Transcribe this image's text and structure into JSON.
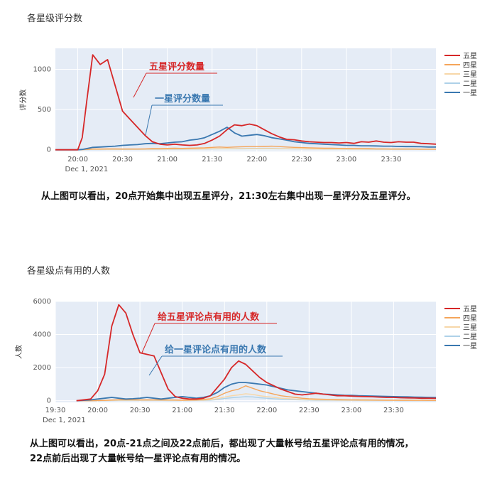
{
  "texts": {
    "chart1_title": "各星级评分数",
    "chart2_title": "各星级点有用的人数",
    "caption1": "从上图可以看出，20点开始集中出现五星评分，21:30左右集中出现一星评分及五星评分。",
    "caption2_line1": "从上图可以看出，20点-21点之间及22点前后，都出现了大量帐号给五星评论点有用的情况，",
    "caption2_line2": "22点前后出现了大量帐号给一星评论点有用的情况。"
  },
  "colors": {
    "五星": "#d62728",
    "四星": "#f5a55a",
    "三星": "#f7d7a8",
    "二星": "#aed1e8",
    "一星": "#3a78b0",
    "plot_bg": "#e5ecf6"
  },
  "chart_data": [
    {
      "type": "line",
      "title": "各星级评分数",
      "ylabel": "评分数",
      "xlabel": "",
      "x_ticks": [
        "20:00",
        "20:30",
        "21:00",
        "21:30",
        "22:00",
        "22:30",
        "23:00",
        "23:30"
      ],
      "x_sublabel": "Dec 1, 2021",
      "y_ticks": [
        0,
        500,
        1000
      ],
      "xlim": [
        19.75,
        24.0
      ],
      "ylim": [
        -20,
        1260
      ],
      "legend_position": "right",
      "annotations": [
        {
          "text": "五星评分数量",
          "series": "五星"
        },
        {
          "text": "一星评分数量",
          "series": "一星"
        }
      ],
      "x": [
        19.75,
        19.917,
        20.0,
        20.05,
        20.1,
        20.167,
        20.25,
        20.333,
        20.417,
        20.5,
        20.583,
        20.667,
        20.75,
        20.833,
        20.917,
        21.0,
        21.083,
        21.167,
        21.25,
        21.333,
        21.417,
        21.5,
        21.583,
        21.667,
        21.75,
        21.833,
        21.917,
        22.0,
        22.083,
        22.167,
        22.25,
        22.333,
        22.417,
        22.5,
        22.583,
        22.667,
        22.75,
        22.833,
        22.917,
        23.0,
        23.083,
        23.167,
        23.25,
        23.333,
        23.417,
        23.5,
        23.583,
        23.667,
        23.75,
        23.833,
        23.917,
        24.0
      ],
      "series": [
        {
          "name": "五星",
          "values": [
            0,
            0,
            0,
            150,
            600,
            1180,
            1060,
            1120,
            800,
            480,
            380,
            280,
            180,
            100,
            70,
            60,
            70,
            60,
            55,
            60,
            80,
            120,
            170,
            250,
            310,
            300,
            320,
            300,
            250,
            200,
            160,
            130,
            125,
            110,
            100,
            95,
            90,
            90,
            85,
            90,
            80,
            100,
            95,
            110,
            95,
            90,
            100,
            95,
            95,
            80,
            75,
            70
          ]
        },
        {
          "name": "四星",
          "values": [
            0,
            0,
            0,
            2,
            5,
            10,
            10,
            12,
            12,
            10,
            10,
            10,
            12,
            15,
            15,
            18,
            20,
            18,
            20,
            22,
            25,
            30,
            35,
            30,
            35,
            38,
            40,
            40,
            42,
            45,
            40,
            35,
            30,
            28,
            25,
            22,
            20,
            20,
            18,
            18,
            15,
            15,
            15,
            12,
            12,
            10,
            10,
            10,
            10,
            8,
            8,
            8
          ]
        },
        {
          "name": "三星",
          "values": [
            0,
            0,
            0,
            1,
            3,
            5,
            5,
            6,
            6,
            6,
            6,
            6,
            7,
            8,
            8,
            9,
            10,
            10,
            10,
            11,
            12,
            14,
            15,
            15,
            16,
            17,
            18,
            18,
            18,
            18,
            16,
            15,
            14,
            13,
            12,
            11,
            10,
            10,
            9,
            9,
            8,
            8,
            8,
            7,
            7,
            6,
            6,
            6,
            6,
            5,
            5,
            5
          ]
        },
        {
          "name": "二星",
          "values": [
            0,
            0,
            0,
            1,
            2,
            3,
            3,
            4,
            4,
            4,
            4,
            4,
            5,
            5,
            5,
            6,
            6,
            6,
            7,
            7,
            8,
            9,
            10,
            10,
            11,
            11,
            12,
            12,
            12,
            12,
            11,
            10,
            9,
            9,
            8,
            8,
            7,
            7,
            7,
            6,
            6,
            6,
            5,
            5,
            5,
            5,
            4,
            4,
            4,
            4,
            4,
            4
          ]
        },
        {
          "name": "一星",
          "values": [
            0,
            0,
            0,
            5,
            15,
            30,
            35,
            40,
            45,
            55,
            60,
            65,
            75,
            80,
            75,
            85,
            95,
            100,
            120,
            130,
            150,
            190,
            230,
            280,
            210,
            170,
            180,
            190,
            175,
            150,
            135,
            120,
            100,
            90,
            80,
            75,
            70,
            65,
            60,
            55,
            55,
            50,
            50,
            48,
            45,
            45,
            42,
            40,
            40,
            38,
            35,
            35
          ]
        }
      ]
    },
    {
      "type": "line",
      "title": "各星级点有用的人数",
      "ylabel": "人数",
      "xlabel": "",
      "x_ticks": [
        "19:30",
        "20:00",
        "20:30",
        "21:00",
        "21:30",
        "22:00",
        "22:30",
        "23:00",
        "23:30"
      ],
      "x_sublabel": "Dec 1, 2021",
      "y_ticks": [
        0,
        2000,
        4000,
        6000
      ],
      "xlim": [
        19.5,
        24.0
      ],
      "ylim": [
        -100,
        6000
      ],
      "legend_position": "right",
      "annotations": [
        {
          "text": "给五星评论点有用的人数",
          "series": "五星"
        },
        {
          "text": "给一星评论点有用的人数",
          "series": "一星"
        }
      ],
      "x": [
        19.75,
        19.917,
        20.0,
        20.083,
        20.167,
        20.25,
        20.333,
        20.417,
        20.5,
        20.583,
        20.667,
        20.75,
        20.833,
        20.917,
        21.0,
        21.083,
        21.167,
        21.25,
        21.333,
        21.417,
        21.5,
        21.583,
        21.667,
        21.75,
        21.833,
        21.917,
        22.0,
        22.083,
        22.167,
        22.25,
        22.333,
        22.417,
        22.5,
        22.583,
        22.667,
        22.75,
        22.833,
        22.917,
        23.0,
        23.083,
        23.167,
        23.25,
        23.333,
        23.417,
        23.5,
        23.583,
        23.667,
        23.75,
        23.833,
        23.917,
        24.0
      ],
      "series": [
        {
          "name": "五星",
          "values": [
            0,
            100,
            600,
            1600,
            4500,
            5800,
            5300,
            4000,
            2900,
            2800,
            2700,
            1700,
            700,
            250,
            150,
            100,
            100,
            150,
            300,
            800,
            1300,
            2000,
            2400,
            2200,
            1800,
            1400,
            1100,
            900,
            700,
            550,
            400,
            350,
            400,
            450,
            400,
            350,
            300,
            300,
            280,
            260,
            250,
            240,
            220,
            200,
            200,
            180,
            170,
            160,
            150,
            150,
            140
          ]
        },
        {
          "name": "四星",
          "values": [
            0,
            0,
            10,
            20,
            40,
            60,
            60,
            60,
            55,
            55,
            55,
            50,
            45,
            40,
            35,
            40,
            50,
            70,
            120,
            250,
            450,
            600,
            700,
            900,
            750,
            600,
            500,
            400,
            300,
            250,
            200,
            150,
            120,
            100,
            90,
            80,
            70,
            60,
            55,
            50,
            45,
            40,
            38,
            35,
            32,
            30,
            28,
            25,
            25,
            22,
            20
          ]
        },
        {
          "name": "三星",
          "values": [
            0,
            0,
            5,
            10,
            20,
            30,
            30,
            30,
            28,
            28,
            28,
            25,
            22,
            20,
            18,
            20,
            25,
            35,
            60,
            120,
            220,
            300,
            350,
            420,
            380,
            300,
            250,
            200,
            150,
            125,
            100,
            80,
            60,
            50,
            45,
            40,
            35,
            30,
            28,
            25,
            22,
            20,
            19,
            18,
            16,
            15,
            14,
            13,
            12,
            11,
            10
          ]
        },
        {
          "name": "二星",
          "values": [
            0,
            0,
            3,
            6,
            12,
            18,
            18,
            18,
            16,
            16,
            16,
            15,
            13,
            12,
            11,
            12,
            15,
            20,
            35,
            70,
            130,
            180,
            210,
            250,
            230,
            180,
            150,
            120,
            90,
            75,
            60,
            48,
            36,
            30,
            27,
            24,
            21,
            18,
            17,
            15,
            13,
            12,
            11,
            11,
            10,
            9,
            8,
            8,
            7,
            7,
            6
          ]
        },
        {
          "name": "一星",
          "values": [
            0,
            50,
            100,
            150,
            200,
            150,
            100,
            120,
            150,
            200,
            150,
            100,
            150,
            200,
            250,
            200,
            150,
            200,
            300,
            500,
            800,
            1000,
            1100,
            1100,
            1050,
            1000,
            950,
            850,
            750,
            650,
            600,
            550,
            500,
            450,
            400,
            380,
            350,
            330,
            320,
            300,
            290,
            280,
            270,
            260,
            250,
            240,
            230,
            220,
            210,
            200,
            190
          ]
        }
      ]
    }
  ]
}
